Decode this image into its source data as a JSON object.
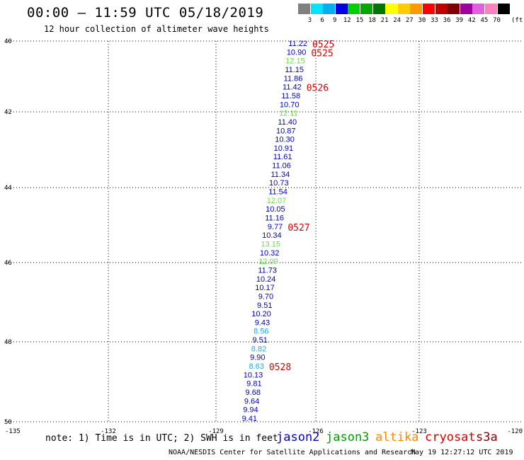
{
  "header": {
    "title": "00:00 – 11:59 UTC 05/18/2019",
    "subtitle": "12 hour collection of altimeter wave heights"
  },
  "colorbar": {
    "swatches": [
      "#808080",
      "#00e5ff",
      "#00b0f0",
      "#0000e0",
      "#00d000",
      "#00a800",
      "#007800",
      "#ffff00",
      "#ffcc00",
      "#ff9900",
      "#ff0000",
      "#c00000",
      "#800000",
      "#a000a0",
      "#e060e0",
      "#ff80c0",
      "#000000"
    ],
    "labels": [
      "3",
      "6",
      "9",
      "12",
      "15",
      "18",
      "21",
      "24",
      "27",
      "30",
      "33",
      "36",
      "39",
      "42",
      "45",
      "70"
    ],
    "unit": "(ft)"
  },
  "axes": {
    "lon_labels": [
      "-135",
      "-132",
      "-129",
      "-126",
      "-123",
      "-120"
    ],
    "lat_labels": [
      "40",
      "42",
      "44",
      "46",
      "48",
      "50"
    ]
  },
  "points": [
    {
      "v": "11.22",
      "c": "#0000cc"
    },
    {
      "v": "10.90",
      "c": "#0000cc"
    },
    {
      "v": "12.15",
      "c": "#66dd44"
    },
    {
      "v": "11.15",
      "c": "#0000cc"
    },
    {
      "v": "11.86",
      "c": "#0000cc"
    },
    {
      "v": "11.42",
      "c": "#0000cc"
    },
    {
      "v": "11.58",
      "c": "#0000cc"
    },
    {
      "v": "10.70",
      "c": "#0000cc"
    },
    {
      "v": "12.11",
      "c": "#66dd44"
    },
    {
      "v": "11.40",
      "c": "#0000cc"
    },
    {
      "v": "10.87",
      "c": "#0000cc"
    },
    {
      "v": "10.30",
      "c": "#0000cc"
    },
    {
      "v": "10.91",
      "c": "#0000cc"
    },
    {
      "v": "11.61",
      "c": "#0000cc"
    },
    {
      "v": "11.06",
      "c": "#0000cc"
    },
    {
      "v": "11.34",
      "c": "#0000cc"
    },
    {
      "v": "10.73",
      "c": "#0000cc"
    },
    {
      "v": "11.54",
      "c": "#0000cc"
    },
    {
      "v": "12.07",
      "c": "#66dd44"
    },
    {
      "v": "10.05",
      "c": "#0000cc"
    },
    {
      "v": "11.16",
      "c": "#0000cc"
    },
    {
      "v": "9.77",
      "c": "#0000cc"
    },
    {
      "v": "10.34",
      "c": "#0000cc"
    },
    {
      "v": "13.15",
      "c": "#66dd44"
    },
    {
      "v": "10.32",
      "c": "#0000cc"
    },
    {
      "v": "12.09",
      "c": "#66dd44"
    },
    {
      "v": "11.73",
      "c": "#0000cc"
    },
    {
      "v": "10.24",
      "c": "#0000cc"
    },
    {
      "v": "10.17",
      "c": "#0000cc"
    },
    {
      "v": "9.70",
      "c": "#0000cc"
    },
    {
      "v": "9.51",
      "c": "#0000cc"
    },
    {
      "v": "10.20",
      "c": "#0000cc"
    },
    {
      "v": "9.43",
      "c": "#0000cc"
    },
    {
      "v": "8.56",
      "c": "#1fa8e0"
    },
    {
      "v": "9.51",
      "c": "#0000cc"
    },
    {
      "v": "8.82",
      "c": "#1fa8e0"
    },
    {
      "v": "9.90",
      "c": "#0000cc"
    },
    {
      "v": "8.63",
      "c": "#1fa8e0"
    },
    {
      "v": "10.13",
      "c": "#0000cc"
    },
    {
      "v": "9.81",
      "c": "#0000cc"
    },
    {
      "v": "9.68",
      "c": "#0000cc"
    },
    {
      "v": "9.64",
      "c": "#0000cc"
    },
    {
      "v": "9.94",
      "c": "#0000cc"
    },
    {
      "v": "9.41",
      "c": "#0000cc"
    }
  ],
  "times": [
    {
      "t": "0525",
      "i": 0
    },
    {
      "t": "0525",
      "i": 1
    },
    {
      "t": "0526",
      "i": 5
    },
    {
      "t": "0527",
      "i": 21
    },
    {
      "t": "0528",
      "i": 37
    }
  ],
  "footer": {
    "note": "note: 1) Time is in UTC; 2) SWH is in feet",
    "missions": [
      {
        "name": "jason2",
        "color": "#0000cc"
      },
      {
        "name": "jason3",
        "color": "#00a000"
      },
      {
        "name": "altika",
        "color": "#ff8800"
      },
      {
        "name": "cryosat",
        "color": "#dd0000"
      },
      {
        "name": "s3a",
        "color": "#880000"
      }
    ],
    "credit": "NOAA/NESDIS Center for Satellite Applications and Research",
    "timestamp": "May 19 12:27:12 UTC 2019"
  }
}
